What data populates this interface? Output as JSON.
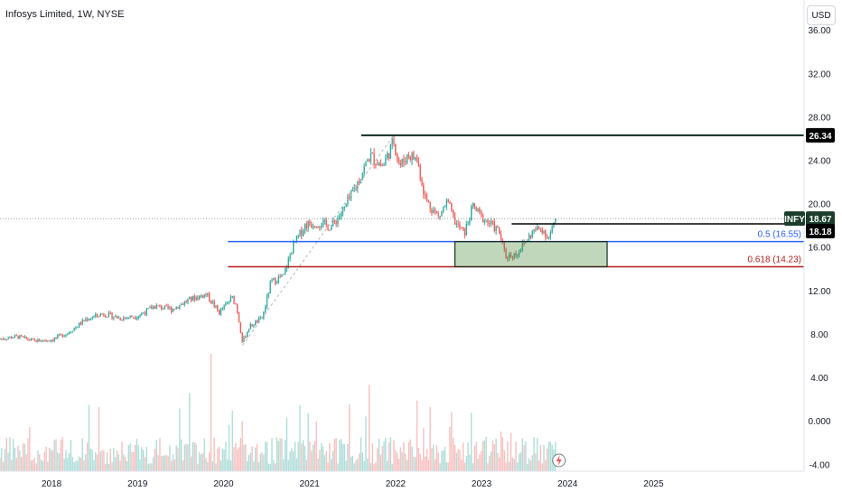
{
  "chart_data": {
    "type": "candlestick",
    "title": "Infosys Limited, 1W, NYSE",
    "currency_label": "USD",
    "symbol": "INFY",
    "ylim": [
      -4.6,
      38.8
    ],
    "y_ticks": [
      "36.00",
      "32.00",
      "28.00",
      "24.00",
      "20.00",
      "16.00",
      "12.00",
      "8.00",
      "4.00",
      "0.000",
      "-4.00"
    ],
    "y_tick_values": [
      36,
      32,
      28,
      24,
      20,
      16,
      12,
      8,
      4,
      0,
      -4
    ],
    "xlim": [
      2017.4,
      2026.75
    ],
    "x_ticks": [
      "2018",
      "2019",
      "2020",
      "2021",
      "2022",
      "2023",
      "2024",
      "2025"
    ],
    "x_tick_values": [
      2018,
      2019,
      2020,
      2021,
      2022,
      2023,
      2024,
      2025
    ],
    "price_path": [
      [
        2017.4,
        7.6
      ],
      [
        2017.6,
        7.8
      ],
      [
        2017.8,
        7.4
      ],
      [
        2018.0,
        7.5
      ],
      [
        2018.2,
        8.2
      ],
      [
        2018.4,
        9.4
      ],
      [
        2018.6,
        9.9
      ],
      [
        2018.8,
        9.5
      ],
      [
        2019.0,
        9.7
      ],
      [
        2019.2,
        10.6
      ],
      [
        2019.4,
        10.3
      ],
      [
        2019.6,
        11.2
      ],
      [
        2019.8,
        11.7
      ],
      [
        2019.95,
        10.0
      ],
      [
        2020.1,
        11.4
      ],
      [
        2020.15,
        10.6
      ],
      [
        2020.22,
        7.3
      ],
      [
        2020.3,
        8.7
      ],
      [
        2020.45,
        9.5
      ],
      [
        2020.55,
        12.8
      ],
      [
        2020.7,
        13.4
      ],
      [
        2020.8,
        16.0
      ],
      [
        2020.95,
        18.1
      ],
      [
        2021.1,
        18.3
      ],
      [
        2021.25,
        17.9
      ],
      [
        2021.4,
        19.5
      ],
      [
        2021.55,
        21.8
      ],
      [
        2021.7,
        24.5
      ],
      [
        2021.85,
        23.5
      ],
      [
        2021.98,
        25.8
      ],
      [
        2022.05,
        23.5
      ],
      [
        2022.15,
        24.6
      ],
      [
        2022.25,
        24.1
      ],
      [
        2022.35,
        20.4
      ],
      [
        2022.5,
        18.8
      ],
      [
        2022.6,
        20.2
      ],
      [
        2022.7,
        18.2
      ],
      [
        2022.8,
        17.3
      ],
      [
        2022.9,
        19.8
      ],
      [
        2023.0,
        18.8
      ],
      [
        2023.1,
        18.2
      ],
      [
        2023.2,
        17.5
      ],
      [
        2023.28,
        15.2
      ],
      [
        2023.4,
        15.4
      ],
      [
        2023.5,
        16.4
      ],
      [
        2023.6,
        17.5
      ],
      [
        2023.7,
        17.8
      ],
      [
        2023.78,
        16.9
      ],
      [
        2023.87,
        18.67
      ]
    ],
    "fib_levels": [
      {
        "label": "0.5 (16.55)",
        "value": 16.55,
        "color": "#2962ff"
      },
      {
        "label": "0.618 (14.23)",
        "value": 14.23,
        "color": "#b71c1c"
      }
    ],
    "resistance_level": 26.34,
    "price_labels": [
      {
        "text": "26.34",
        "value": 26.34,
        "bg": "#000000"
      },
      {
        "text": "INFY",
        "value": 18.67,
        "bg": "#1b3d2a"
      },
      {
        "text": "18.67",
        "value": 18.67,
        "bg": "#1b3d2a"
      },
      {
        "text": "18.18",
        "value": 18.18,
        "bg": "#000000"
      }
    ],
    "zone": {
      "x0": 2022.69,
      "x1": 2024.46,
      "y0": 14.23,
      "y1": 16.55
    },
    "colors": {
      "up": "#26a69a",
      "down": "#ef5350",
      "up_volume": "#a6dad4",
      "down_volume": "#f8b9b8"
    }
  }
}
